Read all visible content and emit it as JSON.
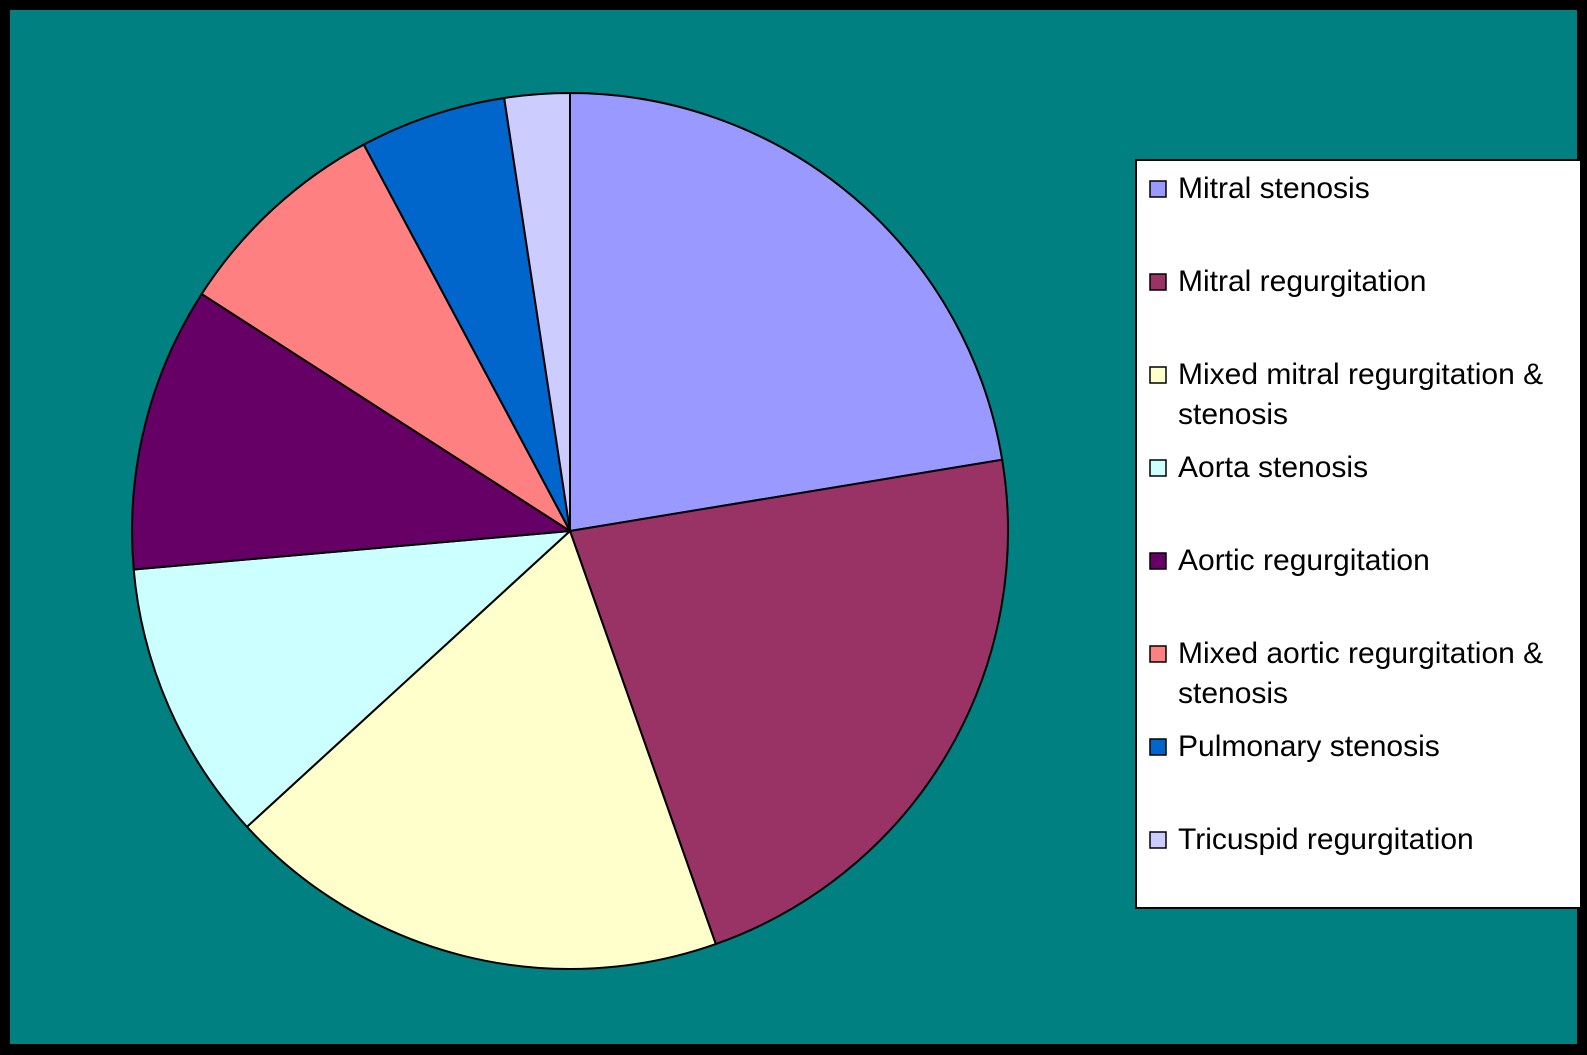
{
  "colors": {
    "background": "#008080",
    "frame": "#000000",
    "slice_stroke": "#000000",
    "legend_background": "#ffffff"
  },
  "chart_data": {
    "type": "pie",
    "title": "",
    "start_angle": "12 o'clock",
    "direction": "clockwise",
    "legend_position": "right",
    "unit": "percent",
    "slices": [
      {
        "label": "Mitral stenosis",
        "value": 22.4,
        "color": "#9999ff"
      },
      {
        "label": "Mitral regurgitation",
        "value": 22.2,
        "color": "#993366"
      },
      {
        "label": "Mixed mitral regurgitation & stenosis",
        "value": 18.6,
        "color": "#ffffcc"
      },
      {
        "label": "Aorta stenosis",
        "value": 10.4,
        "color": "#ccffff"
      },
      {
        "label": "Aortic regurgitation",
        "value": 10.5,
        "color": "#660066"
      },
      {
        "label": "Mixed aortic regurgitation & stenosis",
        "value": 8.1,
        "color": "#ff8080"
      },
      {
        "label": "Pulmonary stenosis",
        "value": 5.4,
        "color": "#0066cc"
      },
      {
        "label": "Tricuspid regurgitation",
        "value": 2.4,
        "color": "#ccccff"
      }
    ]
  }
}
